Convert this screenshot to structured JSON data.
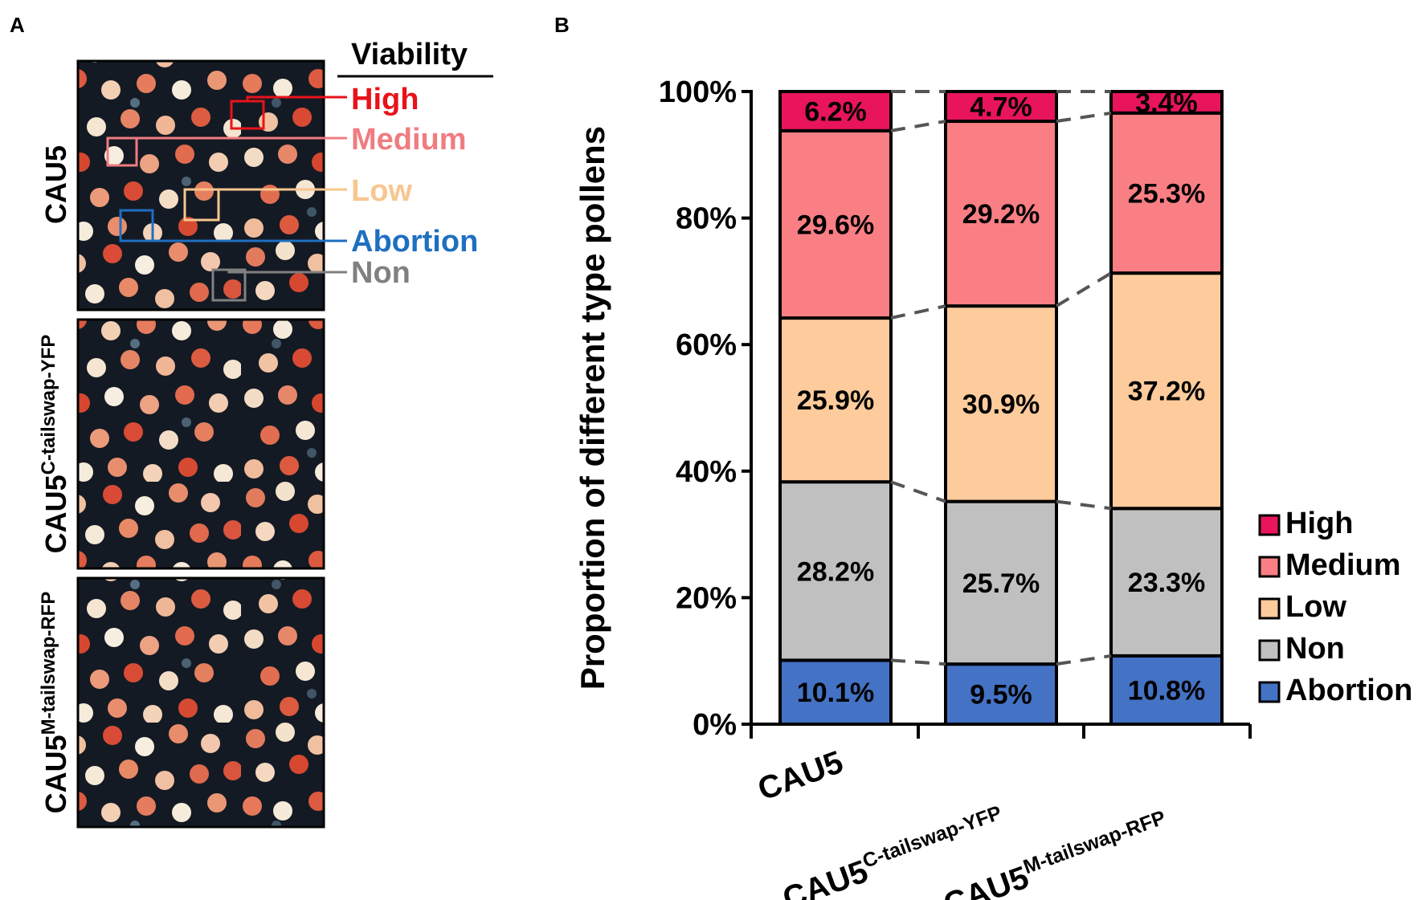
{
  "panel_a": {
    "letter": "A",
    "legend_title": "Viability",
    "row_labels": [
      {
        "main": "CAU5",
        "sup": ""
      },
      {
        "main": "CAU5",
        "sup": "C-tailswap-YFP"
      },
      {
        "main": "CAU5",
        "sup": "M-tailswap-RFP"
      }
    ],
    "callouts": [
      {
        "label": "High",
        "color": "#e8121a"
      },
      {
        "label": "Medium",
        "color": "#f07c80"
      },
      {
        "label": "Low",
        "color": "#f7c68f"
      },
      {
        "label": "Abortion",
        "color": "#1e6fc0"
      },
      {
        "label": "Non",
        "color": "#808080"
      }
    ]
  },
  "panel_b": {
    "letter": "B"
  },
  "chart_data": {
    "type": "bar",
    "stacked": true,
    "title": "",
    "ylabel": "Proportion of different type pollens",
    "xlabel": "",
    "ylim": [
      0,
      100
    ],
    "yticks": [
      "0%",
      "20%",
      "40%",
      "60%",
      "80%",
      "100%"
    ],
    "categories": [
      {
        "main": "CAU5",
        "sup": ""
      },
      {
        "main": "CAU5",
        "sup": "C-tailswap-YFP"
      },
      {
        "main": "CAU5",
        "sup": "M-tailswap-RFP"
      }
    ],
    "series": [
      {
        "name": "Abortion",
        "color": "#4472c4",
        "values": [
          10.1,
          9.5,
          10.8
        ],
        "labels": [
          "10.1%",
          "9.5%",
          "10.8%"
        ]
      },
      {
        "name": "Non",
        "color": "#c0c0c0",
        "values": [
          28.2,
          25.7,
          23.3
        ],
        "labels": [
          "28.2%",
          "25.7%",
          "23.3%"
        ]
      },
      {
        "name": "Low",
        "color": "#fdcb9c",
        "values": [
          25.9,
          30.9,
          37.2
        ],
        "labels": [
          "25.9%",
          "30.9%",
          "37.2%"
        ]
      },
      {
        "name": "Medium",
        "color": "#f97f84",
        "values": [
          29.6,
          29.2,
          25.3
        ],
        "labels": [
          "29.6%",
          "29.2%",
          "25.3%"
        ]
      },
      {
        "name": "High",
        "color": "#e8145c",
        "values": [
          6.2,
          4.7,
          3.4
        ],
        "labels": [
          "6.2%",
          "4.7%",
          "3.4%"
        ]
      }
    ],
    "legend": {
      "placement": "right",
      "order": [
        "High",
        "Medium",
        "Low",
        "Non",
        "Abortion"
      ]
    },
    "series_lines": "dashed connectors between segment boundaries"
  }
}
